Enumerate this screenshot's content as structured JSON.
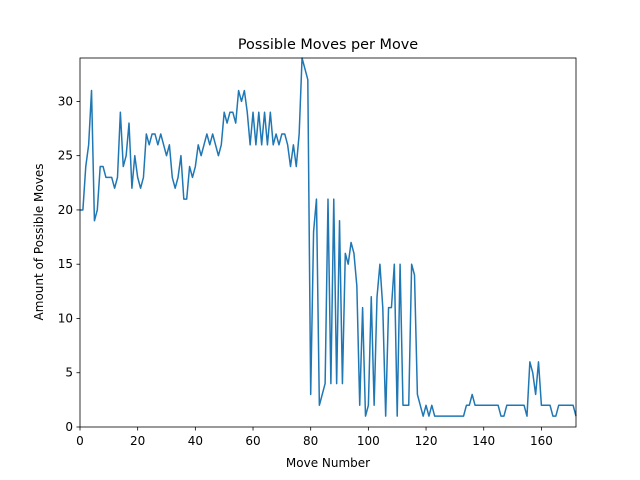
{
  "chart_data": {
    "type": "line",
    "title": "Possible Moves per Move",
    "x_label": "Move Number",
    "y_label": "Amount of Possible Moves",
    "x": [
      0,
      1,
      2,
      3,
      4,
      5,
      6,
      7,
      8,
      9,
      10,
      11,
      12,
      13,
      14,
      15,
      16,
      17,
      18,
      19,
      20,
      21,
      22,
      23,
      24,
      25,
      26,
      27,
      28,
      29,
      30,
      31,
      32,
      33,
      34,
      35,
      36,
      37,
      38,
      39,
      40,
      41,
      42,
      43,
      44,
      45,
      46,
      47,
      48,
      49,
      50,
      51,
      52,
      53,
      54,
      55,
      56,
      57,
      58,
      59,
      60,
      61,
      62,
      63,
      64,
      65,
      66,
      67,
      68,
      69,
      70,
      71,
      72,
      73,
      74,
      75,
      76,
      77,
      78,
      79,
      80,
      81,
      82,
      83,
      84,
      85,
      86,
      87,
      88,
      89,
      90,
      91,
      92,
      93,
      94,
      95,
      96,
      97,
      98,
      99,
      100,
      101,
      102,
      103,
      104,
      105,
      106,
      107,
      108,
      109,
      110,
      111,
      112,
      113,
      114,
      115,
      116,
      117,
      118,
      119,
      120,
      121,
      122,
      123,
      124,
      125,
      126,
      127,
      128,
      129,
      130,
      131,
      132,
      133,
      134,
      135,
      136,
      137,
      138,
      139,
      140,
      141,
      142,
      143,
      144,
      145,
      146,
      147,
      148,
      149,
      150,
      151,
      152,
      153,
      154,
      155,
      156,
      157,
      158,
      159,
      160,
      161,
      162,
      163,
      164,
      165,
      166,
      167,
      168,
      169,
      170,
      171,
      172
    ],
    "series": [
      {
        "color": "#1f77b4",
        "values": [
          20,
          20,
          24,
          26,
          31,
          19,
          20,
          24,
          24,
          23,
          23,
          23,
          22,
          23,
          29,
          24,
          25,
          28,
          22,
          25,
          23,
          22,
          23,
          27,
          26,
          27,
          27,
          26,
          27,
          26,
          25,
          26,
          23,
          22,
          23,
          25,
          21,
          21,
          24,
          23,
          24,
          26,
          25,
          26,
          27,
          26,
          27,
          26,
          25,
          26,
          29,
          28,
          29,
          29,
          28,
          31,
          30,
          31,
          29,
          26,
          29,
          26,
          29,
          26,
          29,
          26,
          29,
          26,
          27,
          26,
          27,
          27,
          26,
          24,
          26,
          24,
          27,
          34,
          33,
          32,
          3,
          18,
          21,
          2,
          3,
          4,
          21,
          4,
          21,
          4,
          19,
          4,
          16,
          15,
          17,
          16,
          13,
          2,
          11,
          1,
          2,
          12,
          2,
          12,
          15,
          11,
          1,
          11,
          11,
          15,
          1,
          15,
          2,
          2,
          2,
          15,
          14,
          3,
          2,
          1,
          2,
          1,
          2,
          1,
          1,
          1,
          1,
          1,
          1,
          1,
          1,
          1,
          1,
          1,
          2,
          2,
          3,
          2,
          2,
          2,
          2,
          2,
          2,
          2,
          2,
          2,
          1,
          1,
          2,
          2,
          2,
          2,
          2,
          2,
          2,
          1,
          6,
          5,
          3,
          6,
          2,
          2,
          2,
          2,
          1,
          1,
          2,
          2,
          2,
          2,
          2,
          2,
          1
        ]
      }
    ],
    "xlim": [
      0,
      172
    ],
    "ylim": [
      0,
      34
    ],
    "xticks": [
      0,
      20,
      40,
      60,
      80,
      100,
      120,
      140,
      160
    ],
    "yticks": [
      0,
      5,
      10,
      15,
      20,
      25,
      30
    ]
  }
}
